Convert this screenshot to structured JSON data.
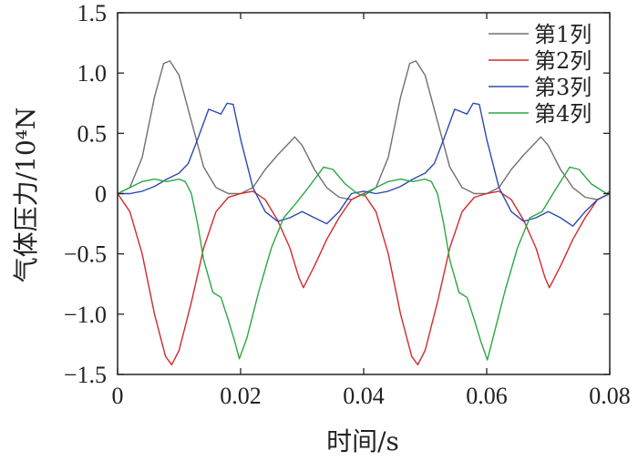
{
  "chart_data": {
    "type": "line",
    "xlabel": "时间/s",
    "ylabel": "气体压力/10⁴N",
    "xlim": [
      0,
      0.08
    ],
    "ylim": [
      -1.5,
      1.5
    ],
    "x_ticks": [
      0,
      0.02,
      0.04,
      0.06,
      0.08
    ],
    "x_tick_labels": [
      "0",
      "0.02",
      "0.04",
      "0.06",
      "0.08"
    ],
    "y_ticks": [
      -1.5,
      -1.0,
      -0.5,
      0,
      0.5,
      1.0,
      1.5
    ],
    "y_tick_labels": [
      "−1.5",
      "−1.0",
      "−0.5",
      "0",
      "0.5",
      "1.0",
      "1.5"
    ],
    "grid": false,
    "legend_position": "top-right",
    "series": [
      {
        "name": "第1列",
        "color": "#707070",
        "points": [
          [
            0,
            0
          ],
          [
            0.002,
            0.05
          ],
          [
            0.004,
            0.3
          ],
          [
            0.006,
            0.8
          ],
          [
            0.0075,
            1.08
          ],
          [
            0.0085,
            1.1
          ],
          [
            0.01,
            0.98
          ],
          [
            0.012,
            0.6
          ],
          [
            0.014,
            0.22
          ],
          [
            0.016,
            0.05
          ],
          [
            0.018,
            0
          ],
          [
            0.02,
            0
          ],
          [
            0.022,
            0.05
          ],
          [
            0.024,
            0.2
          ],
          [
            0.026,
            0.32
          ],
          [
            0.0275,
            0.4
          ],
          [
            0.0288,
            0.47
          ],
          [
            0.03,
            0.4
          ],
          [
            0.032,
            0.2
          ],
          [
            0.034,
            0.05
          ],
          [
            0.036,
            -0.03
          ],
          [
            0.038,
            -0.05
          ],
          [
            0.04,
            0
          ],
          [
            0.042,
            0.05
          ],
          [
            0.044,
            0.3
          ],
          [
            0.046,
            0.8
          ],
          [
            0.0475,
            1.08
          ],
          [
            0.0485,
            1.1
          ],
          [
            0.05,
            0.98
          ],
          [
            0.052,
            0.6
          ],
          [
            0.054,
            0.22
          ],
          [
            0.056,
            0.05
          ],
          [
            0.058,
            0
          ],
          [
            0.06,
            0
          ],
          [
            0.062,
            0.05
          ],
          [
            0.064,
            0.2
          ],
          [
            0.066,
            0.32
          ],
          [
            0.0675,
            0.4
          ],
          [
            0.0688,
            0.47
          ],
          [
            0.07,
            0.4
          ],
          [
            0.072,
            0.2
          ],
          [
            0.074,
            0.05
          ],
          [
            0.076,
            -0.03
          ],
          [
            0.078,
            -0.05
          ],
          [
            0.08,
            0
          ]
        ]
      },
      {
        "name": "第2列",
        "color": "#d42a2a",
        "points": [
          [
            0,
            0
          ],
          [
            0.002,
            -0.15
          ],
          [
            0.004,
            -0.5
          ],
          [
            0.006,
            -1.0
          ],
          [
            0.0078,
            -1.35
          ],
          [
            0.0088,
            -1.42
          ],
          [
            0.01,
            -1.3
          ],
          [
            0.012,
            -0.9
          ],
          [
            0.014,
            -0.45
          ],
          [
            0.016,
            -0.15
          ],
          [
            0.018,
            -0.03
          ],
          [
            0.02,
            0
          ],
          [
            0.022,
            0.02
          ],
          [
            0.024,
            -0.05
          ],
          [
            0.026,
            -0.22
          ],
          [
            0.028,
            -0.45
          ],
          [
            0.0295,
            -0.7
          ],
          [
            0.0302,
            -0.78
          ],
          [
            0.032,
            -0.6
          ],
          [
            0.034,
            -0.38
          ],
          [
            0.036,
            -0.2
          ],
          [
            0.038,
            -0.05
          ],
          [
            0.04,
            0
          ],
          [
            0.042,
            -0.15
          ],
          [
            0.044,
            -0.5
          ],
          [
            0.046,
            -1.0
          ],
          [
            0.0478,
            -1.35
          ],
          [
            0.0488,
            -1.42
          ],
          [
            0.05,
            -1.3
          ],
          [
            0.052,
            -0.9
          ],
          [
            0.054,
            -0.45
          ],
          [
            0.056,
            -0.15
          ],
          [
            0.058,
            -0.03
          ],
          [
            0.06,
            0
          ],
          [
            0.062,
            0.02
          ],
          [
            0.064,
            -0.05
          ],
          [
            0.066,
            -0.22
          ],
          [
            0.068,
            -0.45
          ],
          [
            0.0695,
            -0.7
          ],
          [
            0.0702,
            -0.78
          ],
          [
            0.072,
            -0.6
          ],
          [
            0.074,
            -0.38
          ],
          [
            0.076,
            -0.2
          ],
          [
            0.078,
            -0.05
          ],
          [
            0.08,
            0
          ]
        ]
      },
      {
        "name": "第3列",
        "color": "#2b4bb0",
        "points": [
          [
            0,
            0
          ],
          [
            0.002,
            0
          ],
          [
            0.004,
            0.02
          ],
          [
            0.006,
            0.06
          ],
          [
            0.008,
            0.12
          ],
          [
            0.01,
            0.17
          ],
          [
            0.0115,
            0.25
          ],
          [
            0.013,
            0.45
          ],
          [
            0.0148,
            0.7
          ],
          [
            0.0158,
            0.68
          ],
          [
            0.0168,
            0.66
          ],
          [
            0.0178,
            0.75
          ],
          [
            0.0188,
            0.74
          ],
          [
            0.02,
            0.45
          ],
          [
            0.022,
            0.05
          ],
          [
            0.024,
            -0.15
          ],
          [
            0.026,
            -0.23
          ],
          [
            0.028,
            -0.2
          ],
          [
            0.03,
            -0.15
          ],
          [
            0.032,
            -0.2
          ],
          [
            0.034,
            -0.25
          ],
          [
            0.036,
            -0.15
          ],
          [
            0.038,
            0
          ],
          [
            0.04,
            0.02
          ],
          [
            0.042,
            0
          ],
          [
            0.044,
            0.02
          ],
          [
            0.046,
            0.06
          ],
          [
            0.048,
            0.12
          ],
          [
            0.05,
            0.17
          ],
          [
            0.0515,
            0.25
          ],
          [
            0.053,
            0.45
          ],
          [
            0.0548,
            0.7
          ],
          [
            0.0558,
            0.68
          ],
          [
            0.0568,
            0.66
          ],
          [
            0.0578,
            0.75
          ],
          [
            0.0588,
            0.74
          ],
          [
            0.06,
            0.45
          ],
          [
            0.062,
            0.05
          ],
          [
            0.064,
            -0.15
          ],
          [
            0.066,
            -0.23
          ],
          [
            0.068,
            -0.2
          ],
          [
            0.07,
            -0.15
          ],
          [
            0.072,
            -0.2
          ],
          [
            0.074,
            -0.27
          ],
          [
            0.076,
            -0.15
          ],
          [
            0.078,
            -0.05
          ],
          [
            0.08,
            0
          ]
        ]
      },
      {
        "name": "第4列",
        "color": "#2aa844",
        "points": [
          [
            0,
            0
          ],
          [
            0.002,
            0.05
          ],
          [
            0.004,
            0.1
          ],
          [
            0.006,
            0.12
          ],
          [
            0.008,
            0.1
          ],
          [
            0.01,
            0.12
          ],
          [
            0.011,
            0.1
          ],
          [
            0.012,
            0.0
          ],
          [
            0.013,
            -0.25
          ],
          [
            0.014,
            -0.55
          ],
          [
            0.0155,
            -0.82
          ],
          [
            0.0168,
            -0.86
          ],
          [
            0.018,
            -1.05
          ],
          [
            0.019,
            -1.22
          ],
          [
            0.0198,
            -1.37
          ],
          [
            0.021,
            -1.2
          ],
          [
            0.023,
            -0.8
          ],
          [
            0.025,
            -0.45
          ],
          [
            0.027,
            -0.2
          ],
          [
            0.029,
            -0.08
          ],
          [
            0.031,
            0.05
          ],
          [
            0.0335,
            0.22
          ],
          [
            0.035,
            0.2
          ],
          [
            0.037,
            0.08
          ],
          [
            0.039,
            0
          ],
          [
            0.04,
            -0.02
          ],
          [
            0.042,
            0.05
          ],
          [
            0.044,
            0.1
          ],
          [
            0.046,
            0.12
          ],
          [
            0.048,
            0.1
          ],
          [
            0.05,
            0.12
          ],
          [
            0.051,
            0.1
          ],
          [
            0.052,
            0.0
          ],
          [
            0.053,
            -0.25
          ],
          [
            0.054,
            -0.55
          ],
          [
            0.0555,
            -0.82
          ],
          [
            0.0568,
            -0.86
          ],
          [
            0.058,
            -1.05
          ],
          [
            0.059,
            -1.22
          ],
          [
            0.0601,
            -1.38
          ],
          [
            0.061,
            -1.2
          ],
          [
            0.063,
            -0.8
          ],
          [
            0.065,
            -0.45
          ],
          [
            0.067,
            -0.2
          ],
          [
            0.069,
            -0.15
          ],
          [
            0.071,
            0.02
          ],
          [
            0.0735,
            0.22
          ],
          [
            0.075,
            0.2
          ],
          [
            0.077,
            0.08
          ],
          [
            0.0795,
            0
          ],
          [
            0.08,
            0.02
          ]
        ]
      }
    ]
  }
}
